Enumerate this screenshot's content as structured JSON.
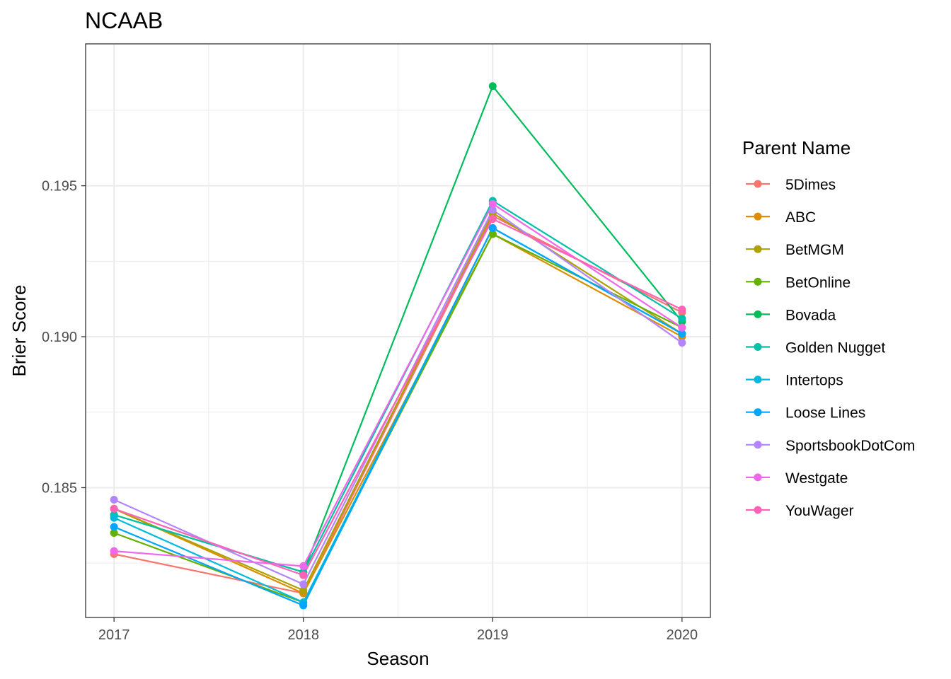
{
  "chart_data": {
    "type": "line",
    "title": "NCAAB",
    "xlabel": "Season",
    "ylabel": "Brier Score",
    "x": [
      "2017",
      "2018",
      "2019",
      "2020"
    ],
    "xlim": [
      2016.85,
      2020.15
    ],
    "ylim": [
      0.1807,
      0.1997
    ],
    "y_ticks": [
      0.185,
      0.19,
      0.195
    ],
    "y_tick_labels": [
      "0.185",
      "0.190",
      "0.195"
    ],
    "grid": true,
    "legend": {
      "title": "Parent Name",
      "position": "right"
    },
    "series": [
      {
        "name": "5Dimes",
        "color": "#F8766D",
        "values": [
          0.1828,
          0.1815,
          0.194,
          0.1908
        ]
      },
      {
        "name": "ABC",
        "color": "#DB8E00",
        "values": [
          0.1843,
          0.1815,
          0.1934,
          0.19
        ]
      },
      {
        "name": "BetMGM",
        "color": "#AEA200",
        "values": [
          0.1843,
          0.1816,
          0.1941,
          0.1901
        ]
      },
      {
        "name": "BetOnline",
        "color": "#64B200",
        "values": [
          0.1835,
          0.1812,
          0.1934,
          0.1903
        ]
      },
      {
        "name": "Bovada",
        "color": "#00BD5C",
        "values": [
          0.1841,
          0.1822,
          0.1983,
          0.1905
        ]
      },
      {
        "name": "Golden Nugget",
        "color": "#00C1A7",
        "values": [
          0.1841,
          0.1822,
          0.1945,
          0.1906
        ]
      },
      {
        "name": "Intertops",
        "color": "#00BADE",
        "values": [
          0.184,
          0.1812,
          0.1936,
          0.1901
        ]
      },
      {
        "name": "Loose Lines",
        "color": "#00A6FF",
        "values": [
          0.1837,
          0.1811,
          0.1936,
          0.1901
        ]
      },
      {
        "name": "SportsbookDotCom",
        "color": "#B385FF",
        "values": [
          0.1846,
          0.1818,
          0.1942,
          0.1898
        ]
      },
      {
        "name": "Westgate",
        "color": "#EF67EB",
        "values": [
          0.1829,
          0.1824,
          0.1944,
          0.1903
        ]
      },
      {
        "name": "YouWager",
        "color": "#FF63B6",
        "values": [
          0.1843,
          0.1821,
          0.1939,
          0.1909
        ]
      }
    ]
  }
}
